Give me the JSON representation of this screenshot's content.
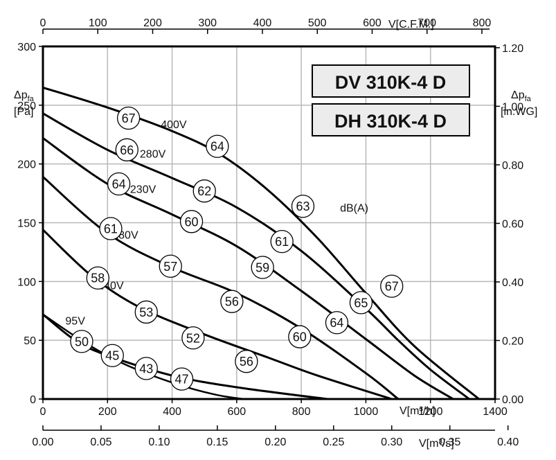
{
  "chart_data": {
    "type": "line",
    "title_lines": [
      "DV 310K-4 D",
      "DH 310K-4 D"
    ],
    "ylabel_left": {
      "symbol": "Δp",
      "sub": "fa",
      "unit": "[Pa]"
    },
    "ylabel_right": {
      "symbol": "Δp",
      "sub": "fa",
      "unit": "[in.WG]"
    },
    "x_bottom_label": "V[m³/h]",
    "x_top_label": "V[C.F.M.]",
    "x_bottom2_label": "V[m³/s]",
    "xlim": [
      0,
      1400
    ],
    "ylim": [
      0,
      300
    ],
    "x_bottom_ticks": [
      "0",
      "200",
      "400",
      "600",
      "800",
      "1000",
      "1200",
      "1400"
    ],
    "x_top_ticks": [
      "0",
      "100",
      "200",
      "300",
      "400",
      "500",
      "600",
      "700",
      "800"
    ],
    "x_bottom2_ticks": [
      "0.00",
      "0.05",
      "0.10",
      "0.15",
      "0.20",
      "0.25",
      "0.30",
      "0.35",
      "0.40"
    ],
    "y_left_ticks": [
      "0",
      "50",
      "100",
      "150",
      "200",
      "250",
      "300"
    ],
    "y_right_ticks": [
      "0.00",
      "0.20",
      "0.40",
      "0.60",
      "0.80",
      "1.00",
      "1.20"
    ],
    "grid": true,
    "series": [
      {
        "name": "400V",
        "x": [
          0,
          200,
          400,
          550,
          700,
          850,
          1000,
          1150,
          1350
        ],
        "y": [
          265,
          248,
          228,
          208,
          177,
          137,
          90,
          45,
          0
        ]
      },
      {
        "name": "280V",
        "x": [
          0,
          200,
          400,
          600,
          800,
          1000,
          1100,
          1200,
          1320
        ],
        "y": [
          243,
          212,
          188,
          163,
          126,
          77,
          50,
          25,
          0
        ]
      },
      {
        "name": "230V",
        "x": [
          0,
          200,
          400,
          600,
          800,
          1000,
          1150,
          1270
        ],
        "y": [
          222,
          183,
          157,
          130,
          92,
          51,
          20,
          0
        ]
      },
      {
        "name": "180V",
        "x": [
          0,
          200,
          400,
          600,
          800,
          1000,
          1100
        ],
        "y": [
          189,
          141,
          112,
          90,
          60,
          22,
          0
        ]
      },
      {
        "name": "140V",
        "x": [
          0,
          150,
          300,
          500,
          700,
          850,
          1080
        ],
        "y": [
          144,
          105,
          78,
          55,
          35,
          20,
          0
        ]
      },
      {
        "name": "95V",
        "x": [
          0,
          100,
          200,
          400,
          600,
          880
        ],
        "y": [
          72,
          50,
          37,
          20,
          10,
          0
        ]
      }
    ],
    "limit_curve": {
      "x": [
        0,
        130,
        250,
        400,
        530,
        620
      ],
      "y": [
        72,
        48,
        30,
        14,
        4,
        0
      ]
    },
    "curve_labels": [
      {
        "text": "400V",
        "x": 405,
        "y": 234
      },
      {
        "text": "280V",
        "x": 340,
        "y": 209
      },
      {
        "text": "230V",
        "x": 310,
        "y": 179
      },
      {
        "text": "180V",
        "x": 255,
        "y": 140
      },
      {
        "text": "140V",
        "x": 210,
        "y": 97
      },
      {
        "text": "95V",
        "x": 100,
        "y": 67
      }
    ],
    "db_unit_label": {
      "text": "dB(A)",
      "x": 920,
      "y": 163
    },
    "db_markers": [
      {
        "value": "67",
        "x": 265,
        "y": 239
      },
      {
        "value": "64",
        "x": 540,
        "y": 215
      },
      {
        "value": "63",
        "x": 805,
        "y": 164
      },
      {
        "value": "67",
        "x": 1080,
        "y": 96
      },
      {
        "value": "66",
        "x": 260,
        "y": 212
      },
      {
        "value": "62",
        "x": 500,
        "y": 177
      },
      {
        "value": "61",
        "x": 740,
        "y": 134
      },
      {
        "value": "65",
        "x": 985,
        "y": 82
      },
      {
        "value": "64",
        "x": 235,
        "y": 183
      },
      {
        "value": "60",
        "x": 460,
        "y": 151
      },
      {
        "value": "59",
        "x": 680,
        "y": 112
      },
      {
        "value": "64",
        "x": 910,
        "y": 65
      },
      {
        "value": "61",
        "x": 210,
        "y": 145
      },
      {
        "value": "57",
        "x": 395,
        "y": 113
      },
      {
        "value": "56",
        "x": 585,
        "y": 83
      },
      {
        "value": "60",
        "x": 795,
        "y": 53
      },
      {
        "value": "58",
        "x": 170,
        "y": 103
      },
      {
        "value": "53",
        "x": 320,
        "y": 74
      },
      {
        "value": "52",
        "x": 465,
        "y": 52
      },
      {
        "value": "56",
        "x": 630,
        "y": 32
      },
      {
        "value": "50",
        "x": 120,
        "y": 49
      },
      {
        "value": "45",
        "x": 215,
        "y": 37
      },
      {
        "value": "43",
        "x": 320,
        "y": 26
      },
      {
        "value": "47",
        "x": 430,
        "y": 17
      }
    ]
  }
}
